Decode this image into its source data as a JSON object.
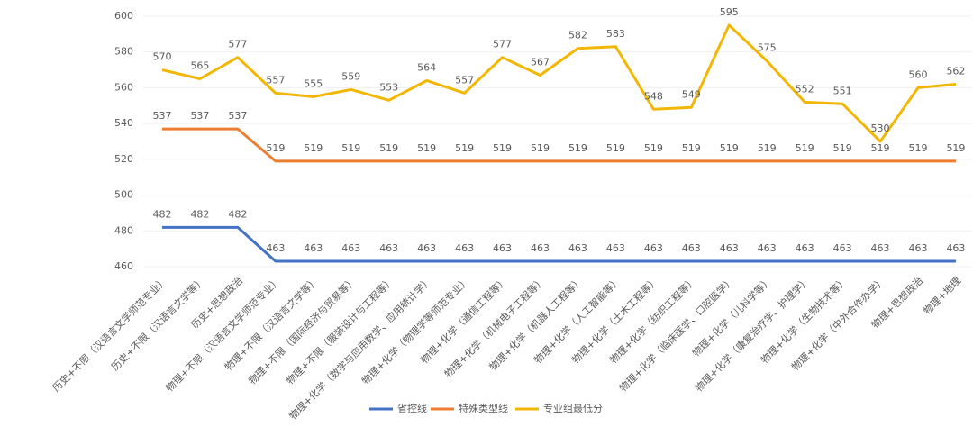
{
  "chart_data": {
    "type": "line",
    "categories": [
      "历史+不限（汉语言文学师范专业）",
      "历史+不限（汉语言文学等）",
      "历史+思想政治",
      "物理+不限（汉语言文学师范专业）",
      "物理+不限（汉语言文学等）",
      "物理+不限（国际经济与贸易等）",
      "物理+不限（服装设计与工程等）",
      "物理+化学（数学与应用数学、应用统计学）",
      "物理+化学（物理学等师范专业）",
      "物理+化学（通信工程等）",
      "物理+化学（机械电子工程等）",
      "物理+化学（机器人工程等）",
      "物理+化学（人工智能等）",
      "物理+化学（土木工程等）",
      "物理+化学（纺织工程等）",
      "物理+化学（临床医学、口腔医学）",
      "物理+化学（儿科学等）",
      "物理+化学（康复治疗学、护理学）",
      "物理+化学（生物技术等）",
      "物理+化学（中外合作办学）",
      "物理+思想政治",
      "物理+地理"
    ],
    "series": [
      {
        "name": "省控线",
        "color": "#4472c4",
        "values": [
          482,
          482,
          482,
          463,
          463,
          463,
          463,
          463,
          463,
          463,
          463,
          463,
          463,
          463,
          463,
          463,
          463,
          463,
          463,
          463,
          463,
          463
        ]
      },
      {
        "name": "特殊类型线",
        "color": "#ed7d31",
        "values": [
          537,
          537,
          537,
          519,
          519,
          519,
          519,
          519,
          519,
          519,
          519,
          519,
          519,
          519,
          519,
          519,
          519,
          519,
          519,
          519,
          519,
          519
        ]
      },
      {
        "name": "专业组最低分",
        "color": "#f2b705",
        "values": [
          570,
          565,
          577,
          557,
          555,
          559,
          553,
          564,
          557,
          577,
          567,
          582,
          583,
          548,
          549,
          595,
          575,
          552,
          551,
          530,
          560,
          562
        ]
      }
    ],
    "ylim": [
      460,
      600
    ],
    "yticks": [
      460,
      480,
      500,
      520,
      540,
      560,
      580,
      600
    ],
    "grid": true,
    "legend": "bottom"
  }
}
